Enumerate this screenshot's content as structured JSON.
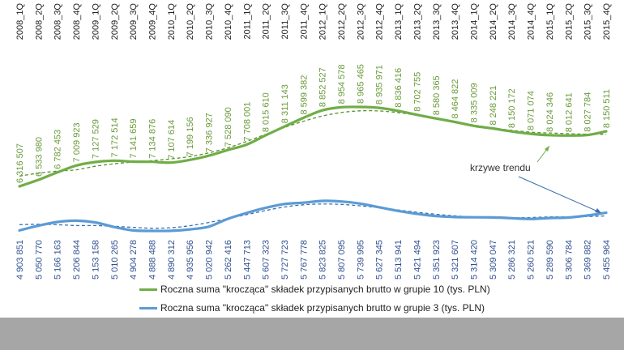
{
  "chart_data": {
    "type": "line",
    "categories": [
      "2008_1Q",
      "2008_2Q",
      "2008_3Q",
      "2008_4Q",
      "2009_1Q",
      "2009_2Q",
      "2009_3Q",
      "2009_4Q",
      "2010_1Q",
      "2010_2Q",
      "2010_3Q",
      "2010_4Q",
      "2011_1Q",
      "2011_2Q",
      "2011_3Q",
      "2011_4Q",
      "2012_1Q",
      "2012_2Q",
      "2012_3Q",
      "2012_4Q",
      "2013_1Q",
      "2013_2Q",
      "2013_3Q",
      "2013_4Q",
      "2014_1Q",
      "2014_2Q",
      "2014_3Q",
      "2014_4Q",
      "2015_1Q",
      "2015_2Q",
      "2015_3Q",
      "2015_4Q"
    ],
    "series": [
      {
        "name": "Roczna suma \"krocząca\" składek przypisanych brutto w grupie 10 (tys. PLN)",
        "color": "#70ad47",
        "values": [
          6316507,
          6533980,
          6782453,
          7009923,
          7127529,
          7172514,
          7141659,
          7134876,
          7107614,
          7199156,
          7336927,
          7528090,
          7708001,
          8015610,
          8311143,
          8599382,
          8852527,
          8954578,
          8965465,
          8935971,
          8836416,
          8702755,
          8580365,
          8464822,
          8335009,
          8248221,
          8150172,
          8071074,
          8024346,
          8012641,
          8027784,
          8150511
        ],
        "labels": [
          "6 316 507",
          "6 533 980",
          "6 782 453",
          "7 009 923",
          "7 127 529",
          "7 172 514",
          "7 141 659",
          "7 134 876",
          "7 107 614",
          "7 199 156",
          "7 336 927",
          "7 528 090",
          "7 708 001",
          "8 015 610",
          "8 311 143",
          "8 599 382",
          "8 852 527",
          "8 954 578",
          "8 965 465",
          "8 935 971",
          "8 836 416",
          "8 702 755",
          "8 580 365",
          "8 464 822",
          "8 335 009",
          "8 248 221",
          "8 150 172",
          "8 071 074",
          "8 024 346",
          "8 012 641",
          "8 027 784",
          "8 150 511"
        ]
      },
      {
        "name": "Roczna suma \"krocząca\" składek przypisanych brutto w grupie 3 (tys. PLN)",
        "color": "#5b9bd5",
        "values": [
          4903851,
          5050770,
          5166163,
          5206844,
          5153158,
          5010265,
          4904278,
          4888488,
          4890312,
          4935956,
          5020942,
          5262416,
          5447713,
          5607323,
          5727723,
          5767778,
          5823825,
          5807095,
          5739995,
          5627345,
          5513941,
          5421494,
          5351923,
          5321607,
          5314420,
          5309047,
          5286321,
          5260521,
          5289590,
          5306784,
          5369882,
          5455964
        ],
        "labels": [
          "4 903 851",
          "5 050 770",
          "5 166 163",
          "5 206 844",
          "5 153 158",
          "5 010 265",
          "4 904 278",
          "4 888 488",
          "4 890 312",
          "4 935 956",
          "5 020 942",
          "5 262 416",
          "5 447 713",
          "5 607 323",
          "5 727 723",
          "5 767 778",
          "5 823 825",
          "5 807 095",
          "5 739 995",
          "5 627 345",
          "5 513 941",
          "5 421 494",
          "5 351 923",
          "5 321 607",
          "5 314 420",
          "5 309 047",
          "5 286 321",
          "5 260 521",
          "5 289 590",
          "5 306 784",
          "5 369 882",
          "5 455 964"
        ]
      }
    ],
    "annotation": "krzywe trendu",
    "grid": false,
    "legend_position": "bottom"
  },
  "colors": {
    "green_text": "#6a9a3a",
    "blue_text": "#2f4f8f",
    "footer": "#a6a6a6"
  }
}
